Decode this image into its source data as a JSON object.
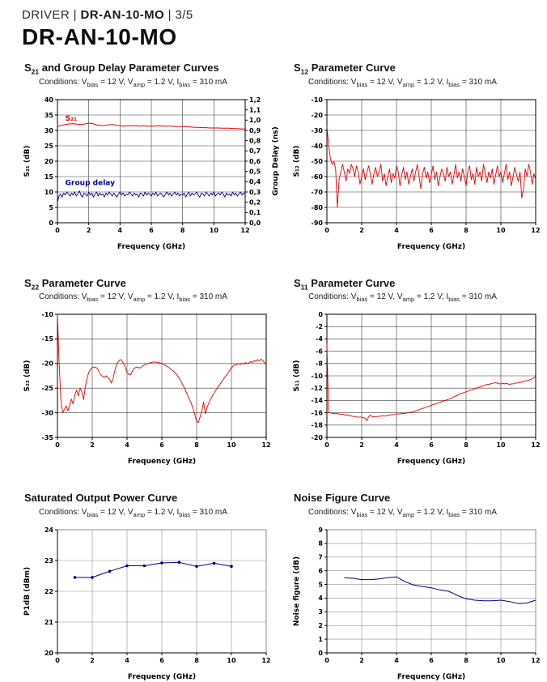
{
  "page": {
    "breadcrumb": {
      "pre": "DRIVER | ",
      "model": "DR-AN-10-MO",
      "post": " | 3/5"
    },
    "title": "DR-AN-10-MO"
  },
  "conditions": {
    "p0": "Conditions: V",
    "s1": "bias",
    "p1": " = 12 V, V",
    "s2": "amp",
    "p2": " = 1.2 V, I",
    "s3": "bias",
    "p3": " = 310 mA"
  },
  "colors": {
    "red": "#e60000",
    "navy": "#00008b"
  },
  "chart_data": [
    {
      "type": "line",
      "title": {
        "pre": "S",
        "sub": "21",
        "post": " and Group Delay Parameter Curves"
      },
      "xlabel": "Frequency (GHz)",
      "ylabel": "S₂₁ (dB)",
      "y2label": "Group Delay (ns)",
      "xlim": [
        0,
        12
      ],
      "xticks": [
        0,
        2,
        4,
        6,
        8,
        10,
        12
      ],
      "xtick_labels": [
        "0",
        "2",
        "4",
        "6",
        "8",
        "10",
        "12"
      ],
      "ylim": [
        0,
        40
      ],
      "yticks": [
        0,
        5,
        10,
        15,
        20,
        25,
        30,
        35,
        40
      ],
      "ytick_labels": [
        "0",
        "5",
        "10",
        "15",
        "20",
        "25",
        "30",
        "35",
        "40"
      ],
      "y2lim": [
        0,
        1.2
      ],
      "y2ticks": [
        0,
        0.1,
        0.2,
        0.3,
        0.4,
        0.5,
        0.6,
        0.7,
        0.8,
        0.9,
        1.0,
        1.1,
        1.2
      ],
      "y2tick_labels": [
        "0,0",
        "0,1",
        "0,2",
        "0,3",
        "0,4",
        "0,5",
        "0,6",
        "0,7",
        "0,8",
        "0,9",
        "1,0",
        "1,1",
        "1,2"
      ],
      "grid": true,
      "grid_color": "#3d3d3d",
      "frame_color": "#000000",
      "margins": {
        "l": 44,
        "r": 44,
        "t": 8,
        "b": 36
      },
      "series": [
        {
          "name": "S21",
          "color": "red",
          "axis": "y",
          "width": 1,
          "x0": 0,
          "dx": 0.25,
          "y": [
            31.3,
            31.6,
            31.9,
            32.1,
            32.2,
            32,
            31.9,
            32.1,
            32.4,
            32.2,
            31.8,
            31.6,
            31.6,
            31.8,
            31.9,
            31.7,
            31.5,
            31.4,
            31.5,
            31.5,
            31.5,
            31.4,
            31.5,
            31.4,
            31.4,
            31.4,
            31.5,
            31.4,
            31.4,
            31.4,
            31.3,
            31.3,
            31.3,
            31.2,
            31.1,
            31,
            31,
            30.9,
            30.9,
            30.8,
            30.8,
            30.8,
            30.7,
            30.7,
            30.7,
            30.6,
            30.6,
            30.5,
            30.5
          ]
        },
        {
          "name": "Group delay",
          "color": "navy",
          "axis": "y2",
          "width": 0.9,
          "x0": 0,
          "dx": 0.1,
          "y": [
            0.2,
            0.26,
            0.28,
            0.25,
            0.29,
            0.27,
            0.3,
            0.28,
            0.26,
            0.29,
            0.27,
            0.3,
            0.26,
            0.28,
            0.31,
            0.27,
            0.25,
            0.29,
            0.28,
            0.26,
            0.3,
            0.27,
            0.29,
            0.25,
            0.28,
            0.3,
            0.26,
            0.29,
            0.27,
            0.28,
            0.25,
            0.29,
            0.27,
            0.3,
            0.28,
            0.26,
            0.29,
            0.27,
            0.25,
            0.28,
            0.3,
            0.27,
            0.29,
            0.26,
            0.28,
            0.27,
            0.3,
            0.28,
            0.26,
            0.29,
            0.27,
            0.28,
            0.25,
            0.29,
            0.28,
            0.26,
            0.3,
            0.27,
            0.29,
            0.28,
            0.26,
            0.29,
            0.27,
            0.3,
            0.26,
            0.28,
            0.29,
            0.27,
            0.25,
            0.28,
            0.3,
            0.27,
            0.29,
            0.26,
            0.28,
            0.3,
            0.27,
            0.29,
            0.26,
            0.28,
            0.27,
            0.29,
            0.25,
            0.28,
            0.3,
            0.26,
            0.29,
            0.27,
            0.28,
            0.3,
            0.27,
            0.25,
            0.29,
            0.28,
            0.26,
            0.3,
            0.28,
            0.26,
            0.29,
            0.27,
            0.3,
            0.26,
            0.28,
            0.29,
            0.27,
            0.3,
            0.28,
            0.25,
            0.29,
            0.27,
            0.28,
            0.26,
            0.3,
            0.27,
            0.29,
            0.26,
            0.28,
            0.3,
            0.27,
            0.29,
            0.28
          ]
        }
      ],
      "annotations": [
        {
          "text": "S₂₁",
          "x": 0.5,
          "y": 33.2,
          "color": "red"
        },
        {
          "text": "Group delay",
          "x": 0.5,
          "y": 12.2,
          "color": "navy"
        }
      ]
    },
    {
      "type": "line",
      "title": {
        "pre": "S",
        "sub": "12",
        "post": " Parameter Curve"
      },
      "xlabel": "Frequency (GHz)",
      "ylabel": "S₁₂ (dB)",
      "xlim": [
        0,
        12
      ],
      "xticks": [
        0,
        2,
        4,
        6,
        8,
        10,
        12
      ],
      "xtick_labels": [
        "0",
        "2",
        "4",
        "6",
        "8",
        "10",
        "12"
      ],
      "ylim": [
        -90,
        -10
      ],
      "yticks": [
        -90,
        -80,
        -70,
        -60,
        -50,
        -40,
        -30,
        -20,
        -10
      ],
      "ytick_labels": [
        "-90",
        "-80",
        "-70",
        "-60",
        "-50",
        "-40",
        "-30",
        "-20",
        "-10"
      ],
      "grid": true,
      "grid_color": "#3d3d3d",
      "frame_color": "#000000",
      "margins": {
        "l": 44,
        "r": 18,
        "t": 8,
        "b": 36
      },
      "series": [
        {
          "name": "S12",
          "color": "red",
          "axis": "y",
          "width": 0.9,
          "x0": 0,
          "dx": 0.1,
          "y": [
            -27,
            -40,
            -48,
            -52,
            -50,
            -55,
            -80,
            -62,
            -57,
            -52,
            -57,
            -63,
            -55,
            -58,
            -52,
            -55,
            -60,
            -53,
            -57,
            -65,
            -60,
            -55,
            -62,
            -57,
            -53,
            -59,
            -65,
            -58,
            -54,
            -60,
            -57,
            -52,
            -63,
            -58,
            -66,
            -60,
            -55,
            -64,
            -58,
            -61,
            -53,
            -57,
            -66,
            -59,
            -54,
            -62,
            -57,
            -65,
            -60,
            -55,
            -63,
            -57,
            -52,
            -60,
            -68,
            -58,
            -54,
            -61,
            -57,
            -64,
            -59,
            -53,
            -62,
            -57,
            -66,
            -60,
            -55,
            -58,
            -63,
            -54,
            -60,
            -57,
            -65,
            -59,
            -52,
            -61,
            -57,
            -63,
            -55,
            -60,
            -66,
            -57,
            -53,
            -62,
            -58,
            -65,
            -54,
            -60,
            -57,
            -63,
            -52,
            -58,
            -64,
            -57,
            -61,
            -55,
            -65,
            -59,
            -53,
            -60,
            -57,
            -64,
            -58,
            -52,
            -62,
            -57,
            -66,
            -60,
            -54,
            -59,
            -63,
            -57,
            -74,
            -68,
            -55,
            -60,
            -52,
            -57,
            -65,
            -58,
            -62
          ]
        }
      ]
    },
    {
      "type": "line",
      "title": {
        "pre": "S",
        "sub": "22",
        "post": " Parameter Curve"
      },
      "xlabel": "Frequency (GHz)",
      "ylabel": "S₂₂ (dB)",
      "xlim": [
        0,
        12
      ],
      "xticks": [
        0,
        2,
        4,
        6,
        8,
        10,
        12
      ],
      "xtick_labels": [
        "0",
        "2",
        "4",
        "6",
        "8",
        "10",
        "12"
      ],
      "ylim": [
        -35,
        -10
      ],
      "yticks": [
        -35,
        -30,
        -25,
        -20,
        -15,
        -10
      ],
      "ytick_labels": [
        "-35",
        "-30",
        "-25",
        "-20",
        "-15",
        "-10"
      ],
      "grid": true,
      "grid_color": "#3d3d3d",
      "frame_color": "#000000",
      "margins": {
        "l": 44,
        "r": 18,
        "t": 8,
        "b": 36
      },
      "series": [
        {
          "name": "S22",
          "color": "red",
          "axis": "y",
          "width": 0.9,
          "x0": 0,
          "dx": 0.1,
          "y": [
            -10,
            -20,
            -27.5,
            -30,
            -29.3,
            -28.6,
            -29.6,
            -28.4,
            -27.2,
            -28.2,
            -26.4,
            -25.4,
            -26.6,
            -25,
            -25.8,
            -27.3,
            -24.8,
            -23,
            -21.8,
            -21.2,
            -20.8,
            -20.7,
            -20.8,
            -21,
            -21.8,
            -22.4,
            -22.6,
            -22.8,
            -22.5,
            -22.8,
            -23.2,
            -24,
            -23,
            -21.4,
            -20.2,
            -19.6,
            -19.2,
            -19.4,
            -20,
            -20.8,
            -21.8,
            -22.2,
            -22.3,
            -21.6,
            -21,
            -20.8,
            -20.7,
            -20.9,
            -20.8,
            -20.5,
            -20.3,
            -20.1,
            -20,
            -19.9,
            -19.8,
            -19.7,
            -19.7,
            -19.8,
            -19.8,
            -19.9,
            -20,
            -20.2,
            -20.4,
            -20.6,
            -20.8,
            -21.1,
            -21.4,
            -21.7,
            -22,
            -22.5,
            -23,
            -23.6,
            -24.3,
            -25,
            -25.8,
            -26.6,
            -27.4,
            -28.2,
            -29.2,
            -30.4,
            -31.8,
            -32,
            -30.8,
            -29.6,
            -27.8,
            -30.2,
            -29,
            -28,
            -27.2,
            -26.6,
            -26,
            -25.4,
            -24.9,
            -24.4,
            -23.9,
            -23.4,
            -22.9,
            -22.4,
            -21.9,
            -21.4,
            -20.9,
            -20.5,
            -20.2,
            -20.3,
            -20,
            -20.2,
            -19.9,
            -20.1,
            -19.8,
            -20,
            -19.9,
            -19.6,
            -19.8,
            -19.4,
            -19.6,
            -19.2,
            -19.5,
            -19.1,
            -19.4,
            -19.8,
            -20.2
          ]
        }
      ]
    },
    {
      "type": "line",
      "title": {
        "pre": "S",
        "sub": "11",
        "post": " Parameter Curve"
      },
      "xlabel": "Frequency (GHz)",
      "ylabel": "S₁₁ (dB)",
      "xlim": [
        0,
        12
      ],
      "xticks": [
        0,
        2,
        4,
        6,
        8,
        10,
        12
      ],
      "xtick_labels": [
        "0",
        "2",
        "4",
        "6",
        "8",
        "10",
        "12"
      ],
      "ylim": [
        -20,
        0
      ],
      "yticks": [
        -20,
        -18,
        -16,
        -14,
        -12,
        -10,
        -8,
        -6,
        -4,
        -2,
        0
      ],
      "ytick_labels": [
        "-20",
        "-18",
        "-16",
        "-14",
        "-12",
        "-10",
        "-8",
        "-6",
        "-4",
        "-2",
        "0"
      ],
      "grid": true,
      "grid_color": "#3d3d3d",
      "frame_color": "#000000",
      "margins": {
        "l": 44,
        "r": 18,
        "t": 8,
        "b": 36
      },
      "series": [
        {
          "name": "S11",
          "color": "red",
          "axis": "y",
          "width": 0.9,
          "x0": 0,
          "dx": 0.1,
          "y": [
            -4.8,
            -16,
            -16,
            -16.1,
            -16.1,
            -16.2,
            -16.1,
            -16.2,
            -16.3,
            -16.2,
            -16.3,
            -16.4,
            -16.3,
            -16.5,
            -16.5,
            -16.6,
            -16.6,
            -16.7,
            -16.7,
            -16.7,
            -16.7,
            -16.8,
            -16.9,
            -17.3,
            -16.6,
            -16.4,
            -16.6,
            -16.7,
            -16.6,
            -16.6,
            -16.6,
            -16.5,
            -16.5,
            -16.5,
            -16.5,
            -16.4,
            -16.4,
            -16.3,
            -16.3,
            -16.3,
            -16.2,
            -16.2,
            -16.2,
            -16.1,
            -16.1,
            -16.1,
            -16,
            -16,
            -15.9,
            -15.9,
            -15.8,
            -15.7,
            -15.6,
            -15.5,
            -15.4,
            -15.3,
            -15.2,
            -15.1,
            -15,
            -14.9,
            -14.8,
            -14.7,
            -14.6,
            -14.5,
            -14.4,
            -14.3,
            -14.2,
            -14.1,
            -14,
            -13.9,
            -13.8,
            -13.7,
            -13.6,
            -13.4,
            -13.3,
            -13.2,
            -13,
            -12.9,
            -12.8,
            -12.7,
            -12.6,
            -12.5,
            -12.4,
            -12.3,
            -12.2,
            -12.1,
            -12,
            -11.9,
            -11.8,
            -11.7,
            -11.6,
            -11.5,
            -11.4,
            -11.4,
            -11.3,
            -11.2,
            -11.2,
            -11.1,
            -11.2,
            -11.3,
            -11.3,
            -11.2,
            -11.3,
            -11.2,
            -11.3,
            -11.4,
            -11.3,
            -11.3,
            -11.2,
            -11.2,
            -11.1,
            -11.1,
            -11,
            -10.9,
            -10.8,
            -10.8,
            -10.7,
            -10.6,
            -10.5,
            -10.3,
            -10.1
          ]
        }
      ]
    },
    {
      "type": "line",
      "title": {
        "pre": "Saturated Output Power Curve",
        "sub": "",
        "post": ""
      },
      "xlabel": "Frequency (GHz)",
      "ylabel": "P1dB (dBm)",
      "xlim": [
        0,
        12
      ],
      "xticks": [
        0,
        2,
        4,
        6,
        8,
        10,
        12
      ],
      "xtick_labels": [
        "0",
        "2",
        "4",
        "6",
        "8",
        "10",
        "12"
      ],
      "ylim": [
        20,
        24
      ],
      "yticks": [
        20,
        21,
        22,
        23,
        24
      ],
      "ytick_labels": [
        "20",
        "21",
        "22",
        "23",
        "24"
      ],
      "grid": true,
      "grid_color": "#8f8f8f",
      "frame_color": "#8f8f8f",
      "margins": {
        "l": 44,
        "r": 18,
        "t": 8,
        "b": 36
      },
      "series": [
        {
          "name": "P1dB",
          "color": "navy",
          "axis": "y",
          "width": 1,
          "markers": true,
          "x0": 1,
          "dx": 1,
          "y": [
            22.45,
            22.45,
            22.65,
            22.83,
            22.83,
            22.92,
            22.94,
            22.81,
            22.91,
            22.81
          ]
        }
      ]
    },
    {
      "type": "line",
      "title": {
        "pre": "Noise Figure Curve",
        "sub": "",
        "post": ""
      },
      "xlabel": "Frequency (GHz)",
      "ylabel": "Noise figure (dB)",
      "xlim": [
        0,
        12
      ],
      "xticks": [
        0,
        2,
        4,
        6,
        8,
        10,
        12
      ],
      "xtick_labels": [
        "0",
        "2",
        "4",
        "6",
        "8",
        "10",
        "12"
      ],
      "ylim": [
        0,
        9
      ],
      "yticks": [
        0,
        1,
        2,
        3,
        4,
        5,
        6,
        7,
        8,
        9
      ],
      "ytick_labels": [
        "0",
        "1",
        "2",
        "3",
        "4",
        "5",
        "6",
        "7",
        "8",
        "9"
      ],
      "grid": true,
      "grid_color": "#8f8f8f",
      "frame_color": "#8f8f8f",
      "margins": {
        "l": 44,
        "r": 18,
        "t": 8,
        "b": 36
      },
      "series": [
        {
          "name": "Noise figure",
          "color": "navy",
          "axis": "y",
          "width": 1,
          "x0": 1,
          "dx": 0.5,
          "y": [
            5.5,
            5.45,
            5.35,
            5.35,
            5.4,
            5.5,
            5.55,
            5.2,
            4.95,
            4.85,
            4.75,
            4.6,
            4.5,
            4.2,
            3.95,
            3.85,
            3.8,
            3.8,
            3.85,
            3.75,
            3.6,
            3.65,
            3.85
          ]
        }
      ]
    }
  ]
}
